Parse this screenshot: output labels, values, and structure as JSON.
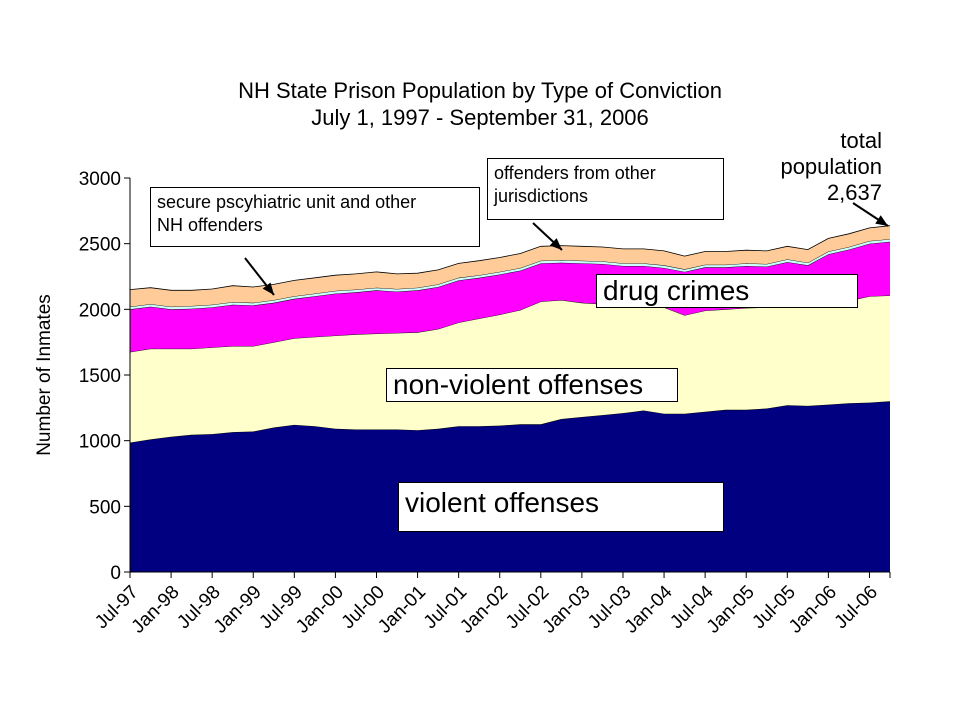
{
  "chart_data": {
    "type": "area",
    "stacked": true,
    "title": "NH State Prison Population by Type of Conviction",
    "subtitle": "July 1, 1997 - September 31, 2006",
    "xlabel": "",
    "ylabel": "Number of Inmates",
    "ylim": [
      0,
      3000
    ],
    "yticks": [
      "0",
      "500",
      "1000",
      "1500",
      "2000",
      "2500",
      "3000"
    ],
    "x_tick_labels": [
      "Jul-97",
      "Jan-98",
      "Jul-98",
      "Jan-99",
      "Jul-99",
      "Jan-00",
      "Jul-00",
      "Jan-01",
      "Jul-01",
      "Jan-02",
      "Jul-02",
      "Jan-03",
      "Jul-03",
      "Jan-04",
      "Jul-04",
      "Jan-05",
      "Jul-05",
      "Jan-06",
      "Jul-06"
    ],
    "x": [
      "Jul-97",
      "Oct-97",
      "Jan-98",
      "Apr-98",
      "Jul-98",
      "Oct-98",
      "Jan-99",
      "Apr-99",
      "Jul-99",
      "Oct-99",
      "Jan-00",
      "Apr-00",
      "Jul-00",
      "Oct-00",
      "Jan-01",
      "Apr-01",
      "Jul-01",
      "Oct-01",
      "Jan-02",
      "Apr-02",
      "Jul-02",
      "Oct-02",
      "Jan-03",
      "Apr-03",
      "Jul-03",
      "Oct-03",
      "Jan-04",
      "Apr-04",
      "Jul-04",
      "Oct-04",
      "Jan-05",
      "Apr-05",
      "Jul-05",
      "Oct-05",
      "Jan-06",
      "Apr-06",
      "Jul-06",
      "Sep-06"
    ],
    "grid": false,
    "series": [
      {
        "name": "violent offenses",
        "color": "#000080",
        "values": [
          985,
          1010,
          1030,
          1045,
          1050,
          1065,
          1070,
          1100,
          1120,
          1110,
          1090,
          1085,
          1085,
          1085,
          1080,
          1090,
          1110,
          1110,
          1115,
          1125,
          1125,
          1165,
          1180,
          1195,
          1210,
          1230,
          1205,
          1205,
          1220,
          1235,
          1235,
          1245,
          1270,
          1265,
          1275,
          1285,
          1290,
          1300
        ]
      },
      {
        "name": "non-violent offenses",
        "color": "#FFFFCC",
        "values": [
          690,
          690,
          670,
          655,
          660,
          655,
          650,
          650,
          660,
          680,
          710,
          725,
          730,
          735,
          745,
          760,
          790,
          820,
          845,
          870,
          935,
          905,
          870,
          845,
          810,
          800,
          810,
          750,
          770,
          765,
          775,
          770,
          770,
          760,
          775,
          780,
          810,
          805
        ]
      },
      {
        "name": "drug crimes",
        "color": "#FF00FF",
        "values": [
          325,
          320,
          300,
          305,
          305,
          315,
          310,
          300,
          300,
          310,
          320,
          320,
          330,
          315,
          320,
          320,
          320,
          310,
          305,
          300,
          290,
          285,
          300,
          305,
          310,
          300,
          300,
          330,
          330,
          320,
          320,
          310,
          320,
          310,
          370,
          390,
          400,
          410
        ]
      },
      {
        "name": "secure pscyhiatric unit and other NH offenders",
        "color": "#CCFFFF",
        "values": [
          20,
          20,
          20,
          20,
          20,
          20,
          20,
          20,
          20,
          20,
          20,
          20,
          20,
          20,
          20,
          20,
          20,
          20,
          20,
          20,
          20,
          20,
          20,
          20,
          20,
          20,
          20,
          20,
          20,
          20,
          20,
          20,
          20,
          20,
          20,
          20,
          20,
          20
        ]
      },
      {
        "name": "offenders from other jurisdictions",
        "color": "#FFCC99",
        "values": [
          130,
          125,
          125,
          120,
          120,
          125,
          120,
          120,
          120,
          120,
          120,
          120,
          120,
          115,
          110,
          110,
          110,
          110,
          110,
          110,
          110,
          110,
          110,
          110,
          110,
          110,
          110,
          100,
          100,
          100,
          100,
          100,
          100,
          100,
          100,
          100,
          100,
          102
        ]
      }
    ]
  },
  "annotations": {
    "total_line1": "total",
    "total_line2": "population",
    "total_value": "2,637",
    "box_psych_line1": "secure pscyhiatric unit and other",
    "box_psych_line2": "NH offenders",
    "box_other_line1": "offenders from other",
    "box_other_line2": "jurisdictions",
    "box_drug": "drug crimes",
    "box_nonviolent": "non-violent offenses",
    "box_violent": "violent offenses"
  }
}
